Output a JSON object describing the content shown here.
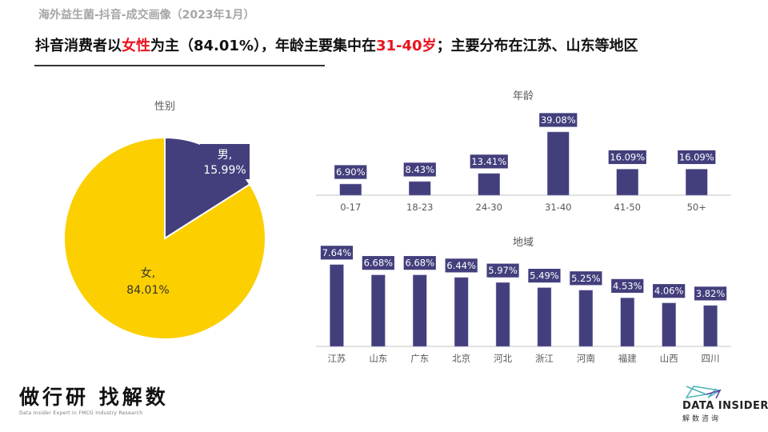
{
  "header": {
    "subtitle": "海外益生菌-抖音-成交画像（2023年1月）",
    "headline_parts": [
      {
        "text": "抖音消费者以",
        "highlight": false
      },
      {
        "text": "女性",
        "highlight": true
      },
      {
        "text": "为主（84.01%），年龄主要集中在",
        "highlight": false
      },
      {
        "text": "31-40岁",
        "highlight": true
      },
      {
        "text": "；主要分布在江苏、山东等地区",
        "highlight": false
      }
    ]
  },
  "colors": {
    "primary": "#433f7d",
    "female": "#fccf00",
    "highlight": "#e8141e",
    "axis": "#d9d9d9"
  },
  "chart_data": [
    {
      "type": "pie",
      "title": "性别",
      "slices": [
        {
          "name": "男",
          "value": 15.99,
          "label": "男,",
          "value_label": "15.99%",
          "color": "#433f7d"
        },
        {
          "name": "女",
          "value": 84.01,
          "label": "女,",
          "value_label": "84.01%",
          "color": "#fccf00"
        }
      ]
    },
    {
      "type": "bar",
      "title": "年龄",
      "categories": [
        "0-17",
        "18-23",
        "24-30",
        "31-40",
        "41-50",
        "50+"
      ],
      "values": [
        6.9,
        8.43,
        13.41,
        39.08,
        16.09,
        16.09
      ],
      "labels": [
        "6.90%",
        "8.43%",
        "13.41%",
        "39.08%",
        "16.09%",
        "16.09%"
      ],
      "unit": "%",
      "ylim": [
        0,
        45
      ],
      "grid": false
    },
    {
      "type": "bar",
      "title": "地域",
      "categories": [
        "江苏",
        "山东",
        "广东",
        "北京",
        "河北",
        "浙江",
        "河南",
        "福建",
        "山西",
        "四川"
      ],
      "values": [
        7.64,
        6.68,
        6.68,
        6.44,
        5.97,
        5.49,
        5.25,
        4.53,
        4.06,
        3.82
      ],
      "labels": [
        "7.64%",
        "6.68%",
        "6.68%",
        "6.44%",
        "5.97%",
        "5.49%",
        "5.25%",
        "4.53%",
        "4.06%",
        "3.82%"
      ],
      "unit": "%",
      "ylim": [
        0,
        8
      ],
      "grid": false
    }
  ],
  "footer": {
    "left_logo": "做行研 找解数",
    "left_tagline": "Data Insider Expert in FMCG Industry Research",
    "right_logo": "DATA INSIDER",
    "right_logo_cn": "解数咨询"
  }
}
